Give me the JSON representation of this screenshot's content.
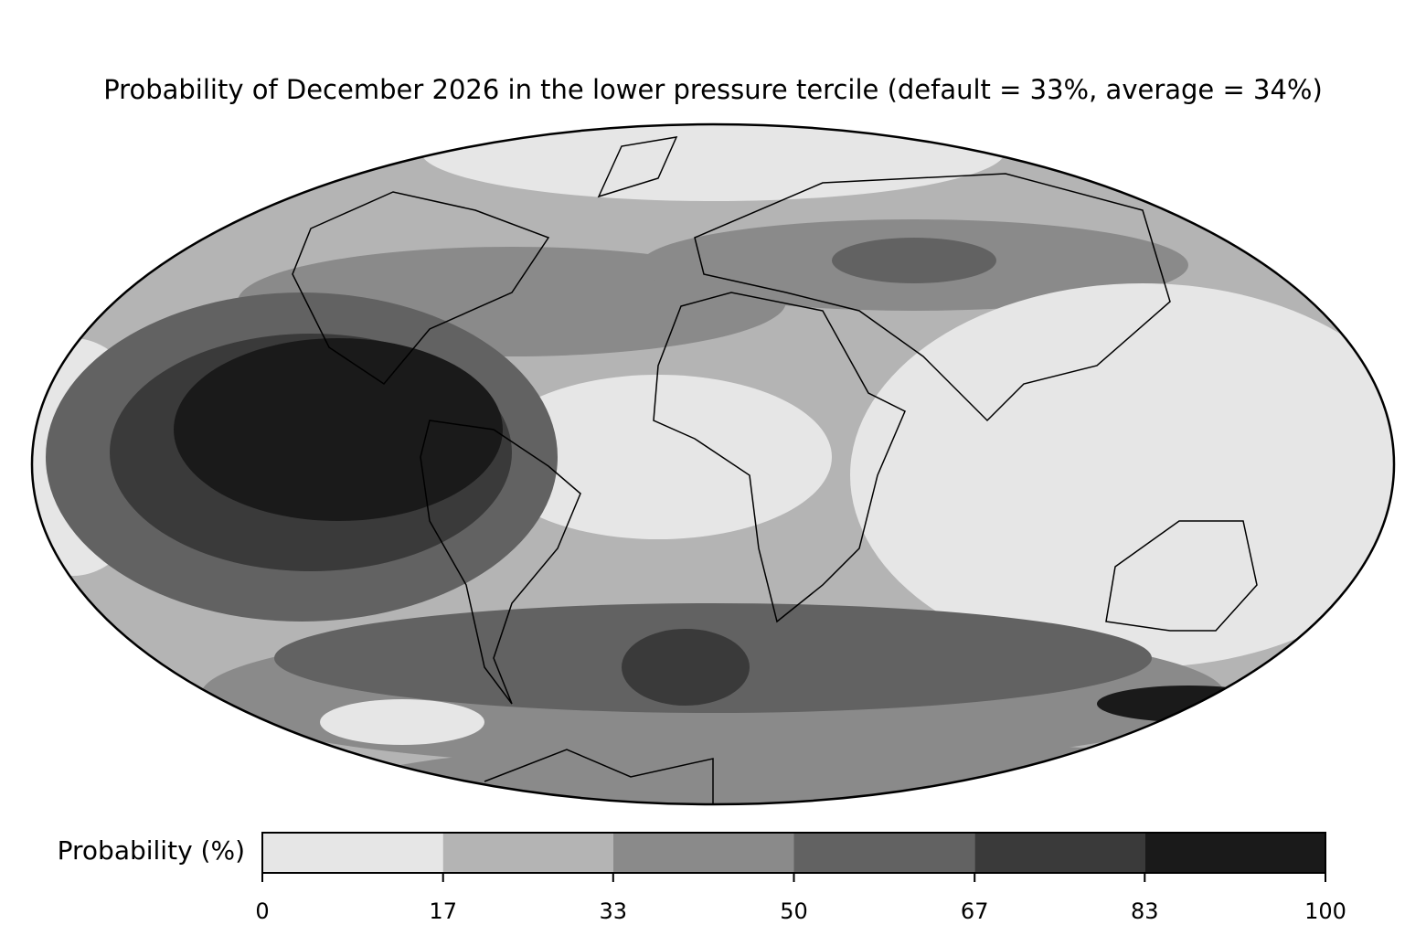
{
  "title": "Probability of December 2026 in the lower pressure tercile (default = 33%, average = 34%)",
  "colorbar": {
    "label": "Probability (%)",
    "ticks": [
      0,
      17,
      33,
      50,
      67,
      83,
      100
    ],
    "colors": [
      "#e6e6e6",
      "#b4b4b4",
      "#8a8a8a",
      "#626262",
      "#3a3a3a",
      "#1a1a1a"
    ]
  }
}
